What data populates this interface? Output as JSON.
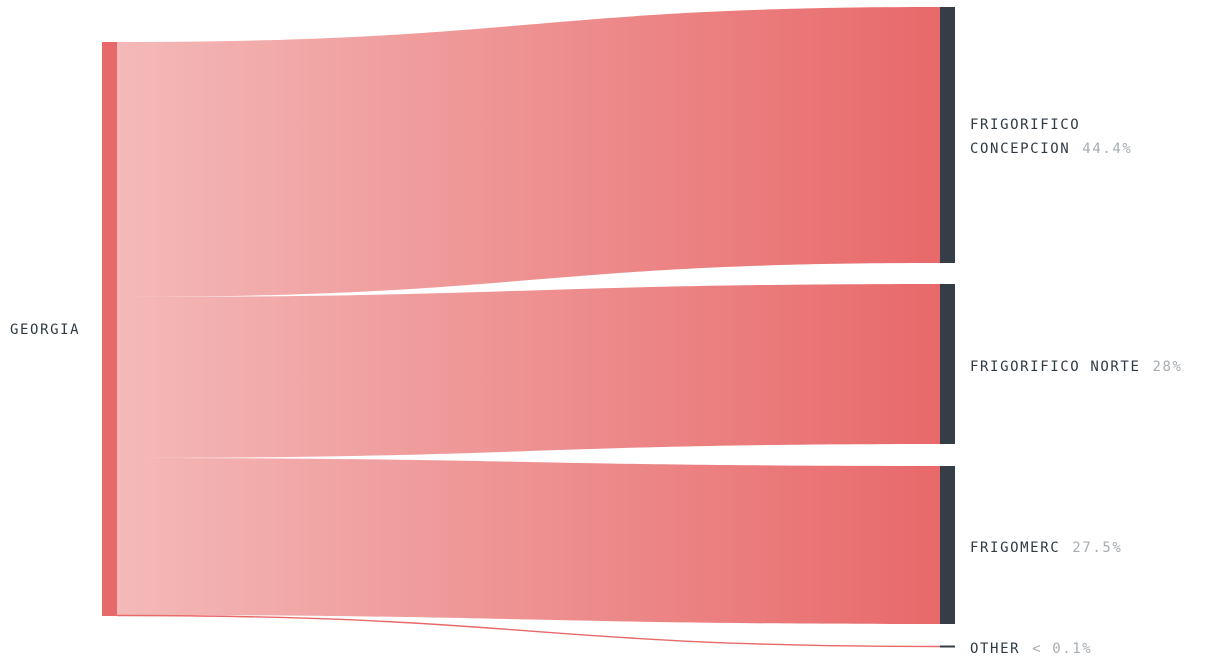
{
  "colors": {
    "source_node": "#e8696a",
    "target_node": "#353e46",
    "flow_start": "#f4b9b9",
    "flow_end": "#e8696a",
    "label_text": "#2f3a44",
    "value_text": "#a7adb2"
  },
  "chart_data": {
    "type": "sankey",
    "source": {
      "name": "GEORGIA"
    },
    "targets": [
      {
        "name_lines": [
          "FRIGORIFICO",
          "CONCEPCION"
        ],
        "value_label": "44.4%",
        "share": 0.444
      },
      {
        "name_lines": [
          "FRIGORIFICO NORTE"
        ],
        "value_label": "28%",
        "share": 0.28
      },
      {
        "name_lines": [
          "FRIGOMERC"
        ],
        "value_label": "27.5%",
        "share": 0.275
      },
      {
        "name_lines": [
          "OTHER"
        ],
        "value_label": "< 0.1%",
        "share": 0.001
      }
    ]
  }
}
